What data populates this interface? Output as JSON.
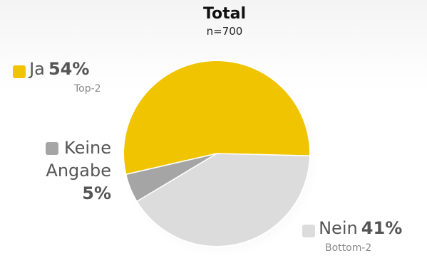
{
  "chart_data": {
    "type": "pie",
    "title": "Total",
    "subtitle": "n=700",
    "slices": [
      {
        "label": "Ja",
        "value": 54,
        "display": "54%",
        "note": "Top-2",
        "color": "#f0c400"
      },
      {
        "label": "Nein",
        "value": 41,
        "display": "41%",
        "note": "Bottom-2",
        "color": "#dcdcdc"
      },
      {
        "label": "Keine Angabe",
        "display_lines": [
          "Keine",
          "Angabe"
        ],
        "value": 5,
        "display": "5%",
        "color": "#a5a5a5"
      }
    ],
    "legend": "around pie"
  }
}
